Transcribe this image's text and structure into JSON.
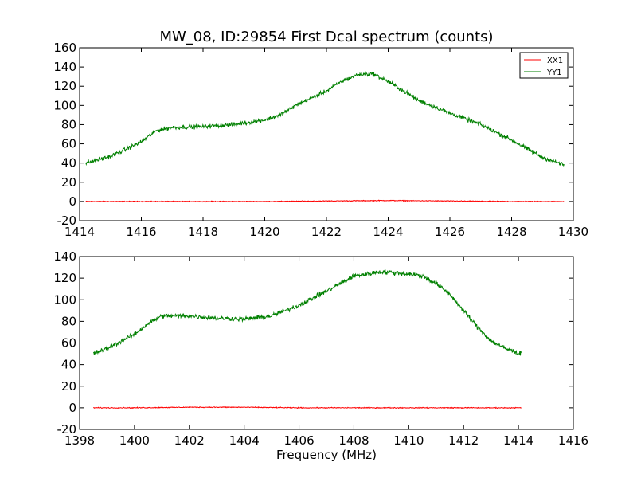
{
  "figure": {
    "title": "MW_08, ID:29854 First Dcal spectrum (counts)",
    "xlabel": "Frequency (MHz)"
  },
  "legend": {
    "entries": [
      {
        "name": "XX1",
        "color": "#ff0000"
      },
      {
        "name": "YY1",
        "color": "#008000"
      }
    ]
  },
  "chart_data": [
    {
      "type": "line",
      "title": "MW_08, ID:29854 First Dcal spectrum (counts)",
      "xlabel": "",
      "ylabel": "",
      "xlim": [
        1414,
        1430
      ],
      "ylim": [
        -20,
        160
      ],
      "xticks": [
        "1414",
        "1416",
        "1418",
        "1420",
        "1422",
        "1424",
        "1426",
        "1428",
        "1430"
      ],
      "yticks": [
        "-20",
        "0",
        "20",
        "40",
        "60",
        "80",
        "100",
        "120",
        "140",
        "160"
      ],
      "grid": false,
      "legend_position": "top-right",
      "noisy": true,
      "series": [
        {
          "name": "XX1",
          "color": "#ff0000",
          "x": [
            1414.2,
            1416,
            1418,
            1420,
            1422,
            1424,
            1426,
            1428,
            1429.7
          ],
          "y": [
            0,
            0,
            0,
            0,
            0.5,
            1,
            0.5,
            0,
            0
          ]
        },
        {
          "name": "YY1",
          "color": "#008000",
          "x": [
            1414.2,
            1415,
            1416,
            1416.5,
            1417,
            1418,
            1419,
            1420,
            1420.5,
            1421,
            1422,
            1422.5,
            1423,
            1423.5,
            1424,
            1424.5,
            1425,
            1426,
            1427,
            1428,
            1429,
            1429.7
          ],
          "y": [
            40,
            47,
            62,
            74,
            77,
            78,
            80,
            85,
            90,
            100,
            115,
            125,
            132,
            133,
            125,
            115,
            105,
            92,
            80,
            64,
            46,
            38
          ]
        }
      ]
    },
    {
      "type": "line",
      "title": "",
      "xlabel": "Frequency (MHz)",
      "ylabel": "",
      "xlim": [
        1398,
        1416
      ],
      "ylim": [
        -20,
        140
      ],
      "xticks": [
        "1398",
        "1400",
        "1402",
        "1404",
        "1406",
        "1408",
        "1410",
        "1412",
        "1414",
        "1416"
      ],
      "yticks": [
        "-20",
        "0",
        "20",
        "40",
        "60",
        "80",
        "100",
        "120",
        "140"
      ],
      "grid": false,
      "noisy": true,
      "series": [
        {
          "name": "XX1",
          "color": "#ff0000",
          "x": [
            1398.5,
            1400,
            1402,
            1404,
            1406,
            1408,
            1410,
            1412,
            1414.1
          ],
          "y": [
            0,
            0,
            0.5,
            0.5,
            0,
            0,
            0,
            0,
            0
          ]
        },
        {
          "name": "YY1",
          "color": "#008000",
          "x": [
            1398.5,
            1399,
            1400,
            1400.5,
            1401,
            1402,
            1403,
            1404,
            1405,
            1406,
            1407,
            1407.5,
            1408,
            1409,
            1410,
            1410.5,
            1411,
            1411.5,
            1412,
            1412.5,
            1413,
            1413.5,
            1414.1
          ],
          "y": [
            50,
            55,
            68,
            78,
            85,
            85,
            83,
            82,
            85,
            95,
            108,
            115,
            122,
            126,
            124,
            122,
            115,
            105,
            90,
            75,
            62,
            55,
            50
          ]
        }
      ]
    }
  ]
}
